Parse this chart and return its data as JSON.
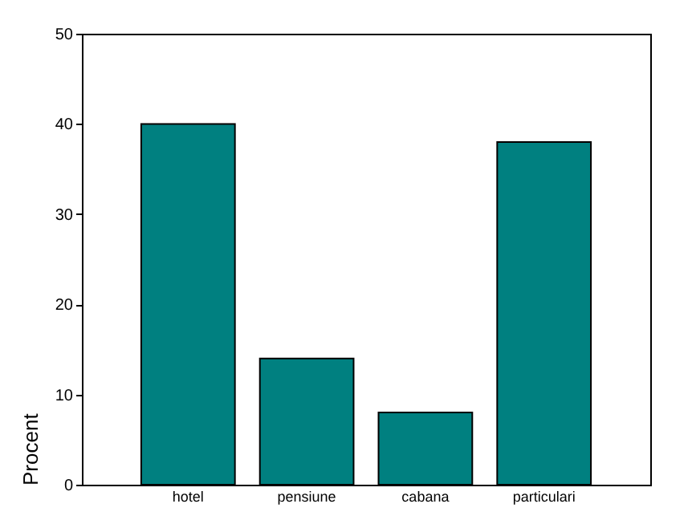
{
  "chart_data": {
    "type": "bar",
    "ylabel": "Procent",
    "categories": [
      "hotel",
      "pensiune",
      "cabana",
      "particulari"
    ],
    "values": [
      40,
      14,
      8,
      38
    ],
    "color": "#008080",
    "ylim": [
      0,
      50
    ],
    "yticks": [
      0,
      10,
      20,
      30,
      40,
      50
    ],
    "grid": false
  }
}
